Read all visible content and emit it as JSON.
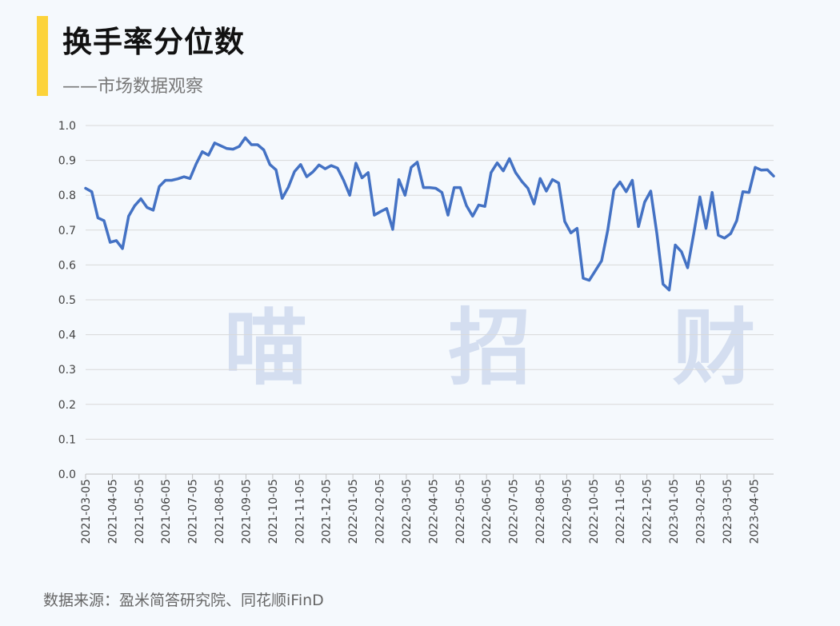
{
  "header": {
    "title": "换手率分位数",
    "subtitle": "——市场数据观察"
  },
  "watermark": "喵 招 财",
  "source": "数据来源：盈米简答研究院、同花顺iFinD",
  "colors": {
    "accent": "#fcd33a",
    "line": "#4472c4",
    "grid": "#d9d9d9",
    "axis": "#bfbfbf"
  },
  "chart_data": {
    "type": "line",
    "ylim": [
      0,
      1.0
    ],
    "y_ticks": [
      "0.0",
      "0.1",
      "0.2",
      "0.3",
      "0.4",
      "0.5",
      "0.6",
      "0.7",
      "0.8",
      "0.9",
      "1.0"
    ],
    "x_ticks": [
      "2021-03-05",
      "2021-04-05",
      "2021-05-05",
      "2021-06-05",
      "2021-07-05",
      "2021-08-05",
      "2021-09-05",
      "2021-10-05",
      "2021-11-05",
      "2021-12-05",
      "2022-01-05",
      "2022-02-05",
      "2022-03-05",
      "2022-04-05",
      "2022-05-05",
      "2022-06-05",
      "2022-07-05",
      "2022-08-05",
      "2022-09-05",
      "2022-10-05",
      "2022-11-05",
      "2022-12-05",
      "2023-01-05",
      "2023-02-05",
      "2023-03-05",
      "2023-04-05"
    ],
    "grid": true,
    "series": [
      {
        "values": [
          0.82,
          0.81,
          0.735,
          0.727,
          0.665,
          0.67,
          0.647,
          0.74,
          0.77,
          0.79,
          0.765,
          0.757,
          0.825,
          0.843,
          0.843,
          0.847,
          0.853,
          0.848,
          0.89,
          0.925,
          0.915,
          0.95,
          0.942,
          0.934,
          0.932,
          0.94,
          0.965,
          0.945,
          0.945,
          0.93,
          0.888,
          0.873,
          0.791,
          0.823,
          0.868,
          0.888,
          0.853,
          0.867,
          0.887,
          0.876,
          0.885,
          0.878,
          0.843,
          0.8,
          0.892,
          0.85,
          0.865,
          0.743,
          0.753,
          0.762,
          0.702,
          0.845,
          0.8,
          0.88,
          0.895,
          0.822,
          0.822,
          0.82,
          0.808,
          0.743,
          0.822,
          0.822,
          0.77,
          0.74,
          0.772,
          0.768,
          0.865,
          0.893,
          0.87,
          0.905,
          0.865,
          0.84,
          0.82,
          0.775,
          0.848,
          0.812,
          0.845,
          0.835,
          0.725,
          0.692,
          0.705,
          0.562,
          0.556,
          0.584,
          0.612,
          0.7,
          0.815,
          0.838,
          0.81,
          0.843,
          0.71,
          0.78,
          0.812,
          0.69,
          0.545,
          0.528,
          0.657,
          0.638,
          0.592,
          0.69,
          0.795,
          0.705,
          0.808,
          0.685,
          0.677,
          0.69,
          0.727,
          0.81,
          0.808,
          0.88,
          0.872,
          0.873,
          0.855
        ]
      }
    ]
  }
}
